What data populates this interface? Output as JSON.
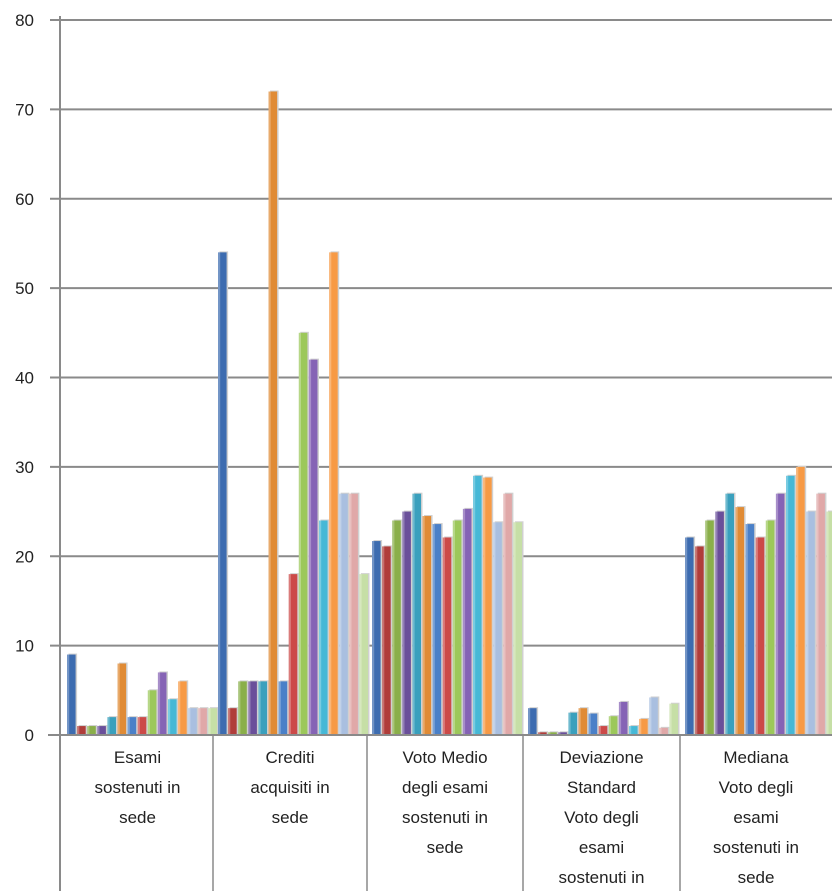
{
  "chart_data": {
    "type": "bar",
    "ylim": [
      0,
      80
    ],
    "y_ticks": [
      "0",
      "10",
      "20",
      "30",
      "40",
      "50",
      "60",
      "70",
      "80"
    ],
    "grid": true,
    "categories": [
      [
        "Esami",
        "sostenuti in",
        "sede"
      ],
      [
        "Crediti",
        "acquisiti in",
        "sede"
      ],
      [
        "Voto Medio",
        "degli esami",
        "sostenuti in",
        "sede"
      ],
      [
        "Deviazione",
        "Standard",
        "Voto degli",
        "esami",
        "sostenuti in"
      ],
      [
        "Mediana",
        "Voto degli",
        "esami",
        "sostenuti in",
        "sede"
      ]
    ],
    "series": [
      {
        "color": "#3d6cb0",
        "values": [
          9,
          54,
          21.7,
          3.0,
          22.1
        ]
      },
      {
        "color": "#b03d3a",
        "values": [
          1,
          3,
          21.1,
          0.3,
          21.1
        ]
      },
      {
        "color": "#8aaf4a",
        "values": [
          1,
          6,
          24.0,
          0.3,
          24.0
        ]
      },
      {
        "color": "#6a4f9a",
        "values": [
          1,
          6,
          25.0,
          0.3,
          25.0
        ]
      },
      {
        "color": "#3aa0bd",
        "values": [
          2,
          6,
          27.0,
          2.5,
          27.0
        ]
      },
      {
        "color": "#e08b35",
        "values": [
          8,
          72,
          24.5,
          3.0,
          25.5
        ]
      },
      {
        "color": "#4a80c8",
        "values": [
          2,
          6,
          23.6,
          2.4,
          23.6
        ]
      },
      {
        "color": "#cc4a48",
        "values": [
          2,
          18,
          22.1,
          1.0,
          22.1
        ]
      },
      {
        "color": "#9cc85a",
        "values": [
          5,
          45,
          24.0,
          2.1,
          24.0
        ]
      },
      {
        "color": "#8563b5",
        "values": [
          7,
          42,
          25.3,
          3.7,
          27.0
        ]
      },
      {
        "color": "#46b8d6",
        "values": [
          4,
          24,
          29.0,
          1.0,
          29.0
        ]
      },
      {
        "color": "#f79a45",
        "values": [
          6,
          54,
          28.8,
          1.8,
          30.0
        ]
      },
      {
        "color": "#a9bfe0",
        "values": [
          3,
          27,
          23.8,
          4.2,
          25.0
        ]
      },
      {
        "color": "#e0a8a8",
        "values": [
          3,
          27,
          27.0,
          0.8,
          27.0
        ]
      },
      {
        "color": "#c6dfa6",
        "values": [
          3,
          18,
          23.8,
          3.5,
          25.0
        ]
      }
    ]
  }
}
